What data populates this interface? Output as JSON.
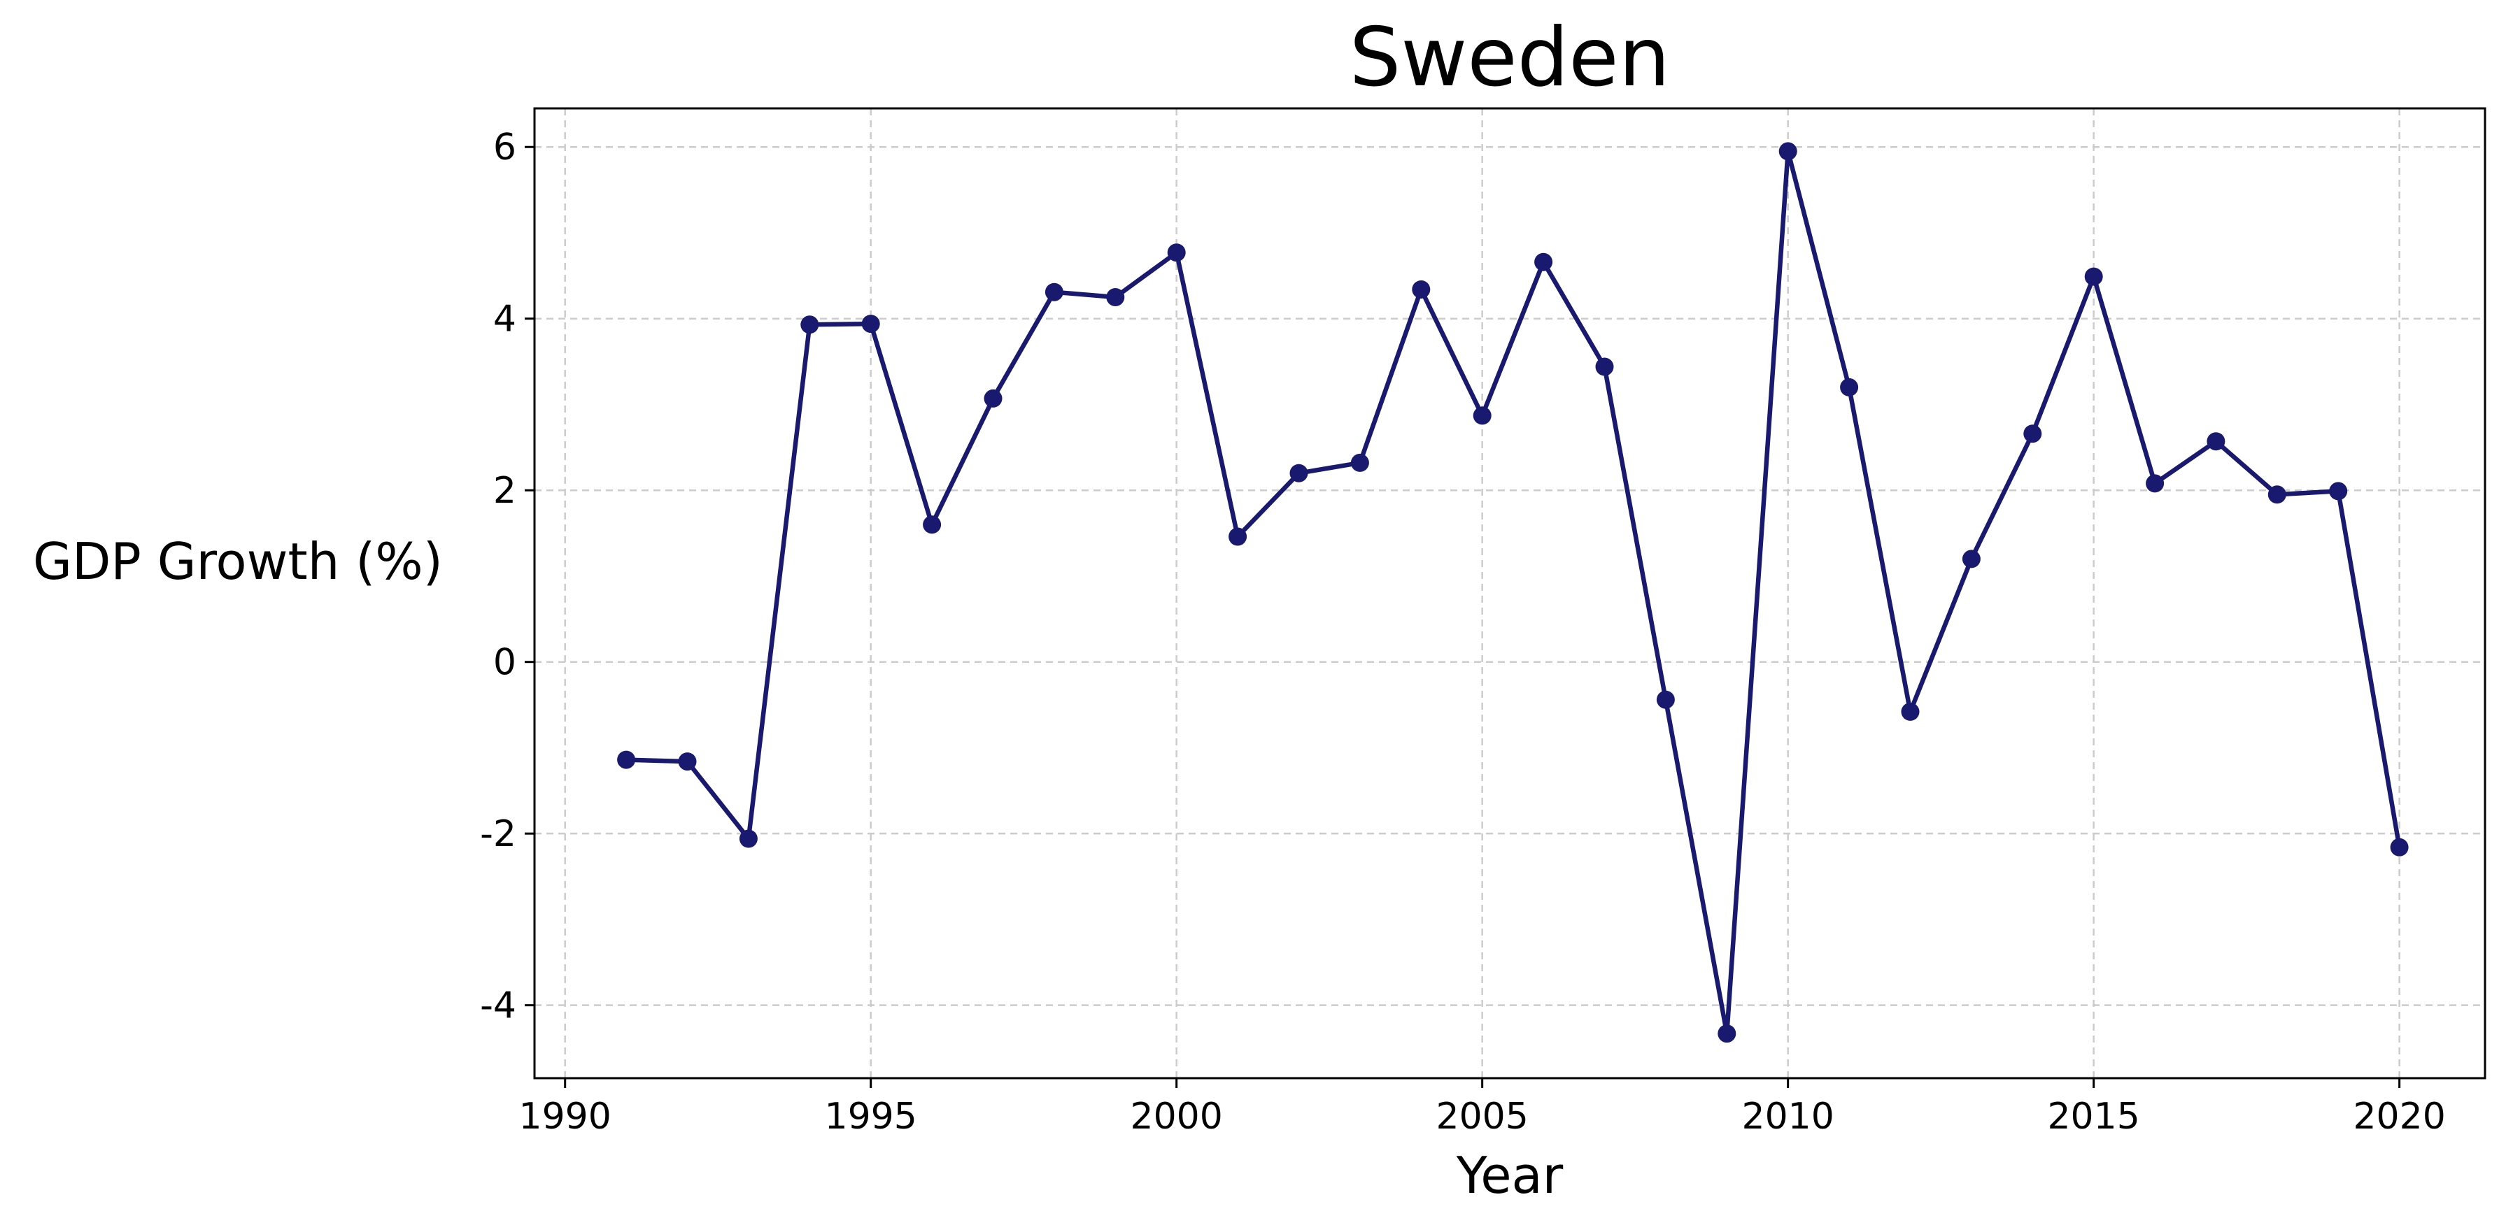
{
  "chart_data": {
    "type": "line",
    "title": "Sweden",
    "xlabel": "Year",
    "ylabel": "GDP Growth (%)",
    "xlim": [
      1989.5,
      2021.4
    ],
    "ylim": [
      -4.85,
      6.45
    ],
    "xticks": [
      1990,
      1995,
      2000,
      2005,
      2010,
      2015,
      2020
    ],
    "yticks": [
      -4,
      -2,
      0,
      2,
      4,
      6
    ],
    "grid": true,
    "line_color": "#191970",
    "series": [
      {
        "x": [
          1991,
          1992,
          1993,
          1994,
          1995,
          1996,
          1997,
          1998,
          1999,
          2000,
          2001,
          2002,
          2003,
          2004,
          2005,
          2006,
          2007,
          2008,
          2009,
          2010,
          2011,
          2012,
          2013,
          2014,
          2015,
          2016,
          2017,
          2018,
          2019,
          2020
        ],
        "values": [
          -1.14,
          -1.16,
          -2.06,
          3.93,
          3.94,
          1.6,
          3.07,
          4.31,
          4.25,
          4.77,
          1.46,
          2.2,
          2.32,
          4.34,
          2.87,
          4.66,
          3.44,
          -0.44,
          -4.33,
          5.95,
          3.2,
          -0.58,
          1.2,
          2.66,
          4.49,
          2.08,
          2.57,
          1.95,
          1.99,
          -2.16
        ]
      }
    ]
  }
}
